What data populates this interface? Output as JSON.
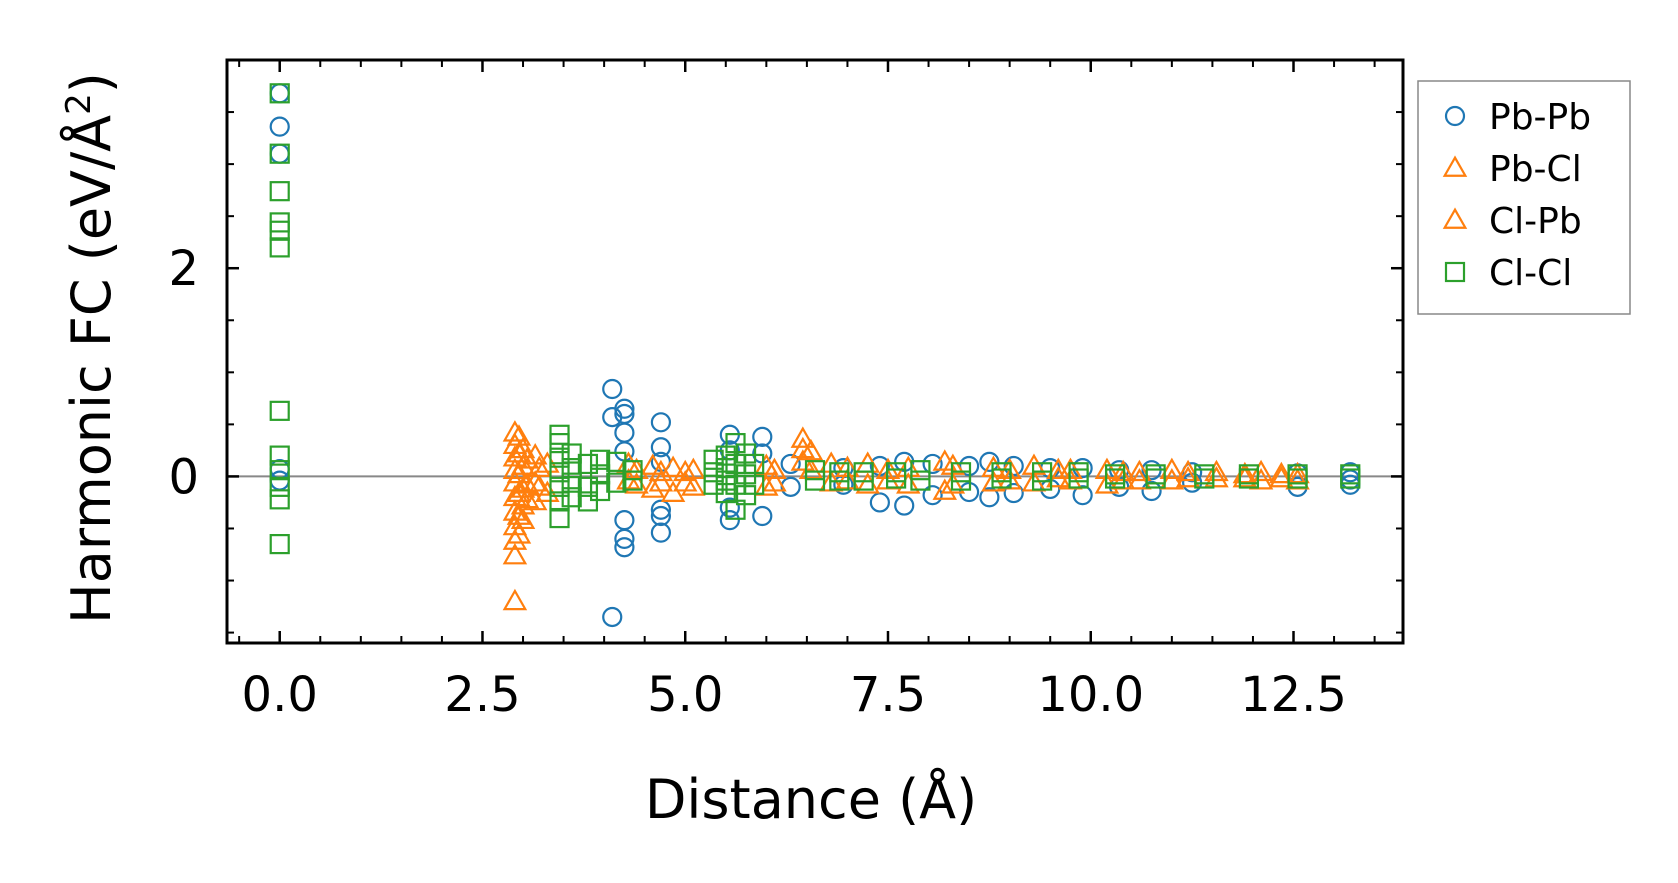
{
  "chart_data": {
    "type": "scatter",
    "title": "",
    "xlabel": "Distance (Å)",
    "ylabel_main": "Harmonic FC (eV/Å",
    "ylabel_sup": "2",
    "ylabel_close": ")",
    "xlim": [
      -0.65,
      13.85
    ],
    "ylim": [
      -1.6,
      4.0
    ],
    "x_ticks": [
      0.0,
      2.5,
      5.0,
      7.5,
      10.0,
      12.5
    ],
    "x_tick_labels": [
      "0.0",
      "2.5",
      "5.0",
      "7.5",
      "10.0",
      "12.5"
    ],
    "y_ticks": [
      0,
      2
    ],
    "y_tick_labels": [
      "0",
      "2"
    ],
    "reference_line_y": 0,
    "legend_position": "outside-right-top",
    "series": [
      {
        "name": "Pb-Pb",
        "marker": "circle",
        "color": "#1f77b4",
        "points": [
          [
            0.0,
            3.68
          ],
          [
            0.0,
            3.36
          ],
          [
            0.0,
            3.1
          ],
          [
            0.0,
            0.07
          ],
          [
            0.0,
            -0.04
          ],
          [
            4.1,
            0.84
          ],
          [
            4.1,
            0.57
          ],
          [
            4.1,
            -1.35
          ],
          [
            4.25,
            0.65
          ],
          [
            4.25,
            0.6
          ],
          [
            4.25,
            0.42
          ],
          [
            4.25,
            0.24
          ],
          [
            4.25,
            -0.42
          ],
          [
            4.25,
            -0.6
          ],
          [
            4.25,
            -0.68
          ],
          [
            4.7,
            0.52
          ],
          [
            4.7,
            0.28
          ],
          [
            4.7,
            0.14
          ],
          [
            4.7,
            -0.32
          ],
          [
            4.7,
            -0.38
          ],
          [
            4.7,
            -0.54
          ],
          [
            5.55,
            0.4
          ],
          [
            5.55,
            0.25
          ],
          [
            5.55,
            -0.3
          ],
          [
            5.55,
            -0.42
          ],
          [
            5.95,
            0.38
          ],
          [
            5.95,
            0.22
          ],
          [
            5.95,
            -0.38
          ],
          [
            6.3,
            0.12
          ],
          [
            6.3,
            -0.1
          ],
          [
            6.95,
            0.08
          ],
          [
            6.95,
            -0.08
          ],
          [
            7.4,
            0.1
          ],
          [
            7.4,
            -0.25
          ],
          [
            7.7,
            0.14
          ],
          [
            7.7,
            -0.28
          ],
          [
            8.05,
            0.12
          ],
          [
            8.05,
            -0.18
          ],
          [
            8.5,
            0.1
          ],
          [
            8.5,
            -0.15
          ],
          [
            8.75,
            0.14
          ],
          [
            8.75,
            -0.2
          ],
          [
            9.05,
            0.1
          ],
          [
            9.05,
            -0.16
          ],
          [
            9.5,
            0.08
          ],
          [
            9.5,
            -0.12
          ],
          [
            9.9,
            0.08
          ],
          [
            9.9,
            -0.18
          ],
          [
            10.35,
            0.06
          ],
          [
            10.35,
            -0.1
          ],
          [
            10.75,
            0.06
          ],
          [
            10.75,
            -0.14
          ],
          [
            11.25,
            0.04
          ],
          [
            11.25,
            -0.06
          ],
          [
            12.55,
            0.03
          ],
          [
            12.55,
            -0.1
          ],
          [
            13.2,
            0.04
          ],
          [
            13.2,
            -0.03
          ],
          [
            13.2,
            -0.08
          ]
        ]
      },
      {
        "name": "Pb-Cl",
        "marker": "triangle",
        "color": "#ff7f0e",
        "points": [
          [
            2.9,
            0.42
          ],
          [
            2.9,
            0.3
          ],
          [
            2.9,
            0.18
          ],
          [
            2.9,
            0.06
          ],
          [
            2.9,
            -0.06
          ],
          [
            2.9,
            -0.2
          ],
          [
            2.9,
            -0.34
          ],
          [
            2.9,
            -0.48
          ],
          [
            2.9,
            -0.62
          ],
          [
            2.9,
            -0.76
          ],
          [
            2.9,
            -1.2
          ],
          [
            3.0,
            0.26
          ],
          [
            3.0,
            0.1
          ],
          [
            3.0,
            -0.12
          ],
          [
            3.0,
            -0.28
          ],
          [
            3.0,
            -0.42
          ],
          [
            3.15,
            0.2
          ],
          [
            3.15,
            -0.06
          ],
          [
            3.15,
            -0.24
          ],
          [
            3.3,
            0.12
          ],
          [
            3.3,
            -0.16
          ],
          [
            4.3,
            0.12
          ],
          [
            4.3,
            -0.04
          ],
          [
            4.6,
            0.1
          ],
          [
            4.6,
            -0.12
          ],
          [
            4.85,
            0.08
          ],
          [
            4.85,
            -0.16
          ],
          [
            5.1,
            0.06
          ],
          [
            5.1,
            -0.1
          ],
          [
            6.0,
            0.1
          ],
          [
            6.0,
            -0.1
          ],
          [
            6.45,
            0.36
          ],
          [
            6.45,
            0.26
          ],
          [
            6.45,
            0.14
          ],
          [
            6.8,
            0.12
          ],
          [
            6.8,
            -0.06
          ],
          [
            7.25,
            0.12
          ],
          [
            7.25,
            -0.08
          ],
          [
            7.75,
            0.08
          ],
          [
            7.75,
            -0.08
          ],
          [
            8.2,
            0.14
          ],
          [
            8.2,
            -0.14
          ],
          [
            8.8,
            0.08
          ],
          [
            8.8,
            -0.06
          ],
          [
            9.3,
            0.1
          ],
          [
            9.3,
            -0.06
          ],
          [
            9.75,
            0.06
          ],
          [
            9.75,
            -0.04
          ],
          [
            10.2,
            0.06
          ],
          [
            10.2,
            -0.08
          ],
          [
            10.6,
            0.04
          ],
          [
            10.6,
            -0.04
          ],
          [
            11.0,
            0.06
          ],
          [
            11.0,
            -0.04
          ],
          [
            11.55,
            0.04
          ],
          [
            11.55,
            -0.02
          ],
          [
            12.1,
            0.04
          ],
          [
            12.1,
            -0.04
          ],
          [
            12.55,
            0.02
          ],
          [
            12.55,
            -0.04
          ]
        ]
      },
      {
        "name": "Cl-Pb",
        "marker": "triangle",
        "color": "#ff7f0e",
        "points": [
          [
            2.95,
            0.38
          ],
          [
            2.95,
            0.22
          ],
          [
            2.95,
            0.02
          ],
          [
            2.95,
            -0.16
          ],
          [
            2.95,
            -0.38
          ],
          [
            2.95,
            -0.56
          ],
          [
            3.05,
            0.16
          ],
          [
            3.05,
            -0.08
          ],
          [
            3.05,
            -0.22
          ],
          [
            3.2,
            0.08
          ],
          [
            3.2,
            -0.1
          ],
          [
            4.4,
            0.06
          ],
          [
            4.4,
            -0.08
          ],
          [
            4.7,
            0.04
          ],
          [
            4.7,
            -0.06
          ],
          [
            5.0,
            0.04
          ],
          [
            5.0,
            -0.06
          ],
          [
            6.1,
            0.06
          ],
          [
            6.1,
            -0.06
          ],
          [
            6.55,
            0.24
          ],
          [
            6.55,
            0.06
          ],
          [
            7.0,
            0.08
          ],
          [
            7.0,
            -0.04
          ],
          [
            7.5,
            0.06
          ],
          [
            7.5,
            -0.04
          ],
          [
            8.3,
            0.1
          ],
          [
            8.3,
            -0.08
          ],
          [
            9.0,
            0.06
          ],
          [
            9.0,
            -0.04
          ],
          [
            9.6,
            0.06
          ],
          [
            9.6,
            -0.02
          ],
          [
            10.4,
            0.04
          ],
          [
            10.4,
            -0.04
          ],
          [
            11.2,
            0.04
          ],
          [
            11.2,
            -0.02
          ],
          [
            11.9,
            0.02
          ],
          [
            11.9,
            -0.02
          ],
          [
            12.35,
            0.02
          ],
          [
            12.35,
            -0.02
          ]
        ]
      },
      {
        "name": "Cl-Cl",
        "marker": "square",
        "color": "#2ca02c",
        "points": [
          [
            0.0,
            3.68
          ],
          [
            0.0,
            3.1
          ],
          [
            0.0,
            2.74
          ],
          [
            0.0,
            2.44
          ],
          [
            0.0,
            2.36
          ],
          [
            0.0,
            2.2
          ],
          [
            0.0,
            0.63
          ],
          [
            0.0,
            0.2
          ],
          [
            0.0,
            0.06
          ],
          [
            0.0,
            -0.1
          ],
          [
            0.0,
            -0.22
          ],
          [
            0.0,
            -0.65
          ],
          [
            3.45,
            0.4
          ],
          [
            3.45,
            0.32
          ],
          [
            3.45,
            0.18
          ],
          [
            3.45,
            0.04
          ],
          [
            3.45,
            -0.1
          ],
          [
            3.45,
            -0.24
          ],
          [
            3.45,
            -0.4
          ],
          [
            3.6,
            0.22
          ],
          [
            3.6,
            0.08
          ],
          [
            3.6,
            -0.06
          ],
          [
            3.6,
            -0.2
          ],
          [
            3.8,
            0.12
          ],
          [
            3.8,
            -0.1
          ],
          [
            3.8,
            -0.24
          ],
          [
            3.95,
            0.16
          ],
          [
            3.95,
            0.02
          ],
          [
            3.95,
            -0.14
          ],
          [
            4.15,
            0.14
          ],
          [
            4.15,
            -0.06
          ],
          [
            4.35,
            0.06
          ],
          [
            4.35,
            -0.04
          ],
          [
            5.35,
            0.16
          ],
          [
            5.35,
            0.04
          ],
          [
            5.35,
            -0.08
          ],
          [
            5.5,
            0.2
          ],
          [
            5.5,
            0.08
          ],
          [
            5.5,
            -0.04
          ],
          [
            5.5,
            -0.16
          ],
          [
            5.62,
            0.32
          ],
          [
            5.62,
            0.12
          ],
          [
            5.62,
            -0.08
          ],
          [
            5.62,
            -0.32
          ],
          [
            5.75,
            0.22
          ],
          [
            5.75,
            0.02
          ],
          [
            5.75,
            -0.18
          ],
          [
            5.85,
            0.12
          ],
          [
            5.85,
            -0.08
          ],
          [
            6.6,
            0.06
          ],
          [
            6.6,
            -0.04
          ],
          [
            6.9,
            0.04
          ],
          [
            6.9,
            -0.04
          ],
          [
            7.2,
            0.04
          ],
          [
            7.2,
            -0.04
          ],
          [
            7.6,
            0.04
          ],
          [
            7.6,
            -0.02
          ],
          [
            7.9,
            0.06
          ],
          [
            7.9,
            -0.04
          ],
          [
            8.4,
            0.04
          ],
          [
            8.4,
            -0.04
          ],
          [
            8.9,
            0.04
          ],
          [
            8.9,
            -0.02
          ],
          [
            9.4,
            0.04
          ],
          [
            9.4,
            -0.04
          ],
          [
            9.85,
            0.04
          ],
          [
            9.85,
            -0.02
          ],
          [
            10.3,
            0.02
          ],
          [
            10.3,
            -0.02
          ],
          [
            10.8,
            0.02
          ],
          [
            10.8,
            -0.02
          ],
          [
            11.4,
            0.02
          ],
          [
            11.4,
            -0.02
          ],
          [
            11.95,
            0.02
          ],
          [
            11.95,
            -0.02
          ],
          [
            12.55,
            0.02
          ],
          [
            12.55,
            -0.02
          ],
          [
            13.2,
            0.02
          ],
          [
            13.2,
            -0.02
          ]
        ]
      }
    ]
  }
}
